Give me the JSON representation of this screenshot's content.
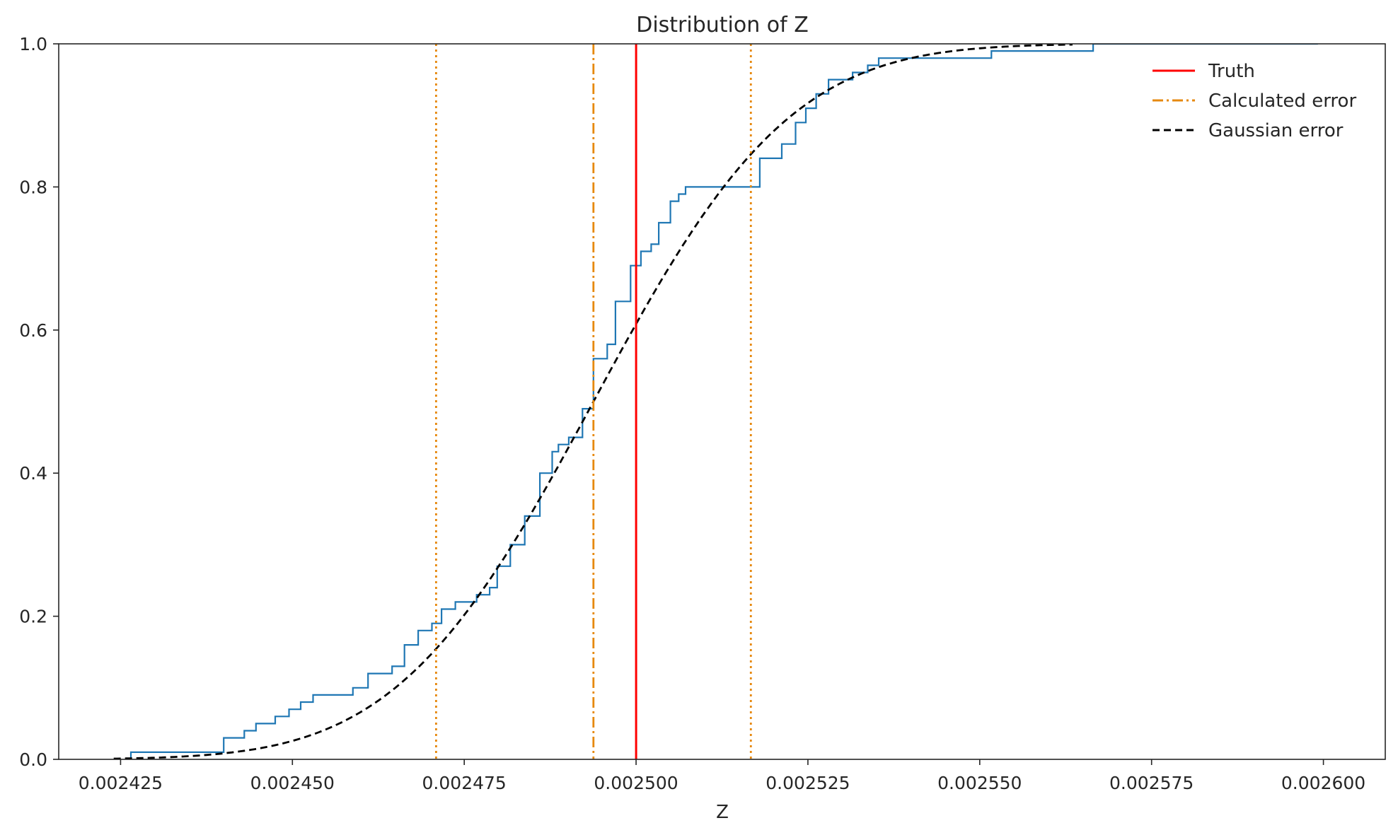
{
  "chart_data": {
    "type": "line",
    "title": "Distribution of Z",
    "xlabel": "Z",
    "ylabel": "",
    "xlim": [
      0.002416,
      0.002609
    ],
    "ylim": [
      0.0,
      1.0
    ],
    "xticks": [
      0.002425,
      0.00245,
      0.002475,
      0.0025,
      0.002525,
      0.00255,
      0.002575,
      0.0026
    ],
    "xtick_labels": [
      "0.002425",
      "0.002450",
      "0.002475",
      "0.002500",
      "0.002525",
      "0.002550",
      "0.002575",
      "0.002600"
    ],
    "yticks": [
      0.0,
      0.2,
      0.4,
      0.6,
      0.8,
      1.0
    ],
    "ytick_labels": [
      "0.0",
      "0.2",
      "0.4",
      "0.6",
      "0.8",
      "1.0"
    ],
    "grid": false,
    "legend_position": "top-right",
    "ecdf": {
      "color": "#1f77b4",
      "x": [
        0.0024265,
        0.00244,
        0.002443,
        0.0024447,
        0.0024475,
        0.0024495,
        0.0024512,
        0.002453,
        0.0024588,
        0.002461,
        0.0024645,
        0.0024663,
        0.0024683,
        0.0024703,
        0.0024717,
        0.0024737,
        0.0024768,
        0.0024787,
        0.0024798,
        0.0024817,
        0.0024838,
        0.002486,
        0.0024878,
        0.0024887,
        0.0024902,
        0.0024922,
        0.0024938,
        0.0024958,
        0.002497,
        0.0024992,
        0.0025007,
        0.0025022,
        0.0025033,
        0.002505,
        0.0025062,
        0.0025072,
        0.002518,
        0.0025212,
        0.0025232,
        0.0025247,
        0.0025262,
        0.002528,
        0.0025315,
        0.0025337,
        0.0025353,
        0.0025517,
        0.0025665,
        0.0025992
      ],
      "y": [
        0.01,
        0.03,
        0.04,
        0.05,
        0.06,
        0.07,
        0.08,
        0.09,
        0.1,
        0.12,
        0.13,
        0.16,
        0.18,
        0.19,
        0.21,
        0.22,
        0.23,
        0.24,
        0.27,
        0.3,
        0.34,
        0.4,
        0.43,
        0.44,
        0.45,
        0.49,
        0.56,
        0.58,
        0.64,
        0.69,
        0.71,
        0.72,
        0.75,
        0.78,
        0.79,
        0.8,
        0.84,
        0.86,
        0.89,
        0.91,
        0.93,
        0.95,
        0.96,
        0.97,
        0.98,
        0.99,
        1.0,
        1.0
      ]
    },
    "gaussian": {
      "mean": 0.0024938,
      "sd": 2.25e-05,
      "x_range": [
        0.002424,
        0.0025635
      ]
    },
    "vlines": [
      {
        "name": "Truth",
        "x": 0.0025,
        "color": "#ff0000",
        "style": "solid"
      },
      {
        "name": "Calculated error",
        "x": 0.0024938,
        "color": "#e6890f",
        "style": "dashdot"
      },
      {
        "name": "lower",
        "x": 0.0024709,
        "color": "#e6890f",
        "style": "dotted"
      },
      {
        "name": "upper",
        "x": 0.0025167,
        "color": "#e6890f",
        "style": "dotted"
      }
    ],
    "legend": [
      {
        "label": "Truth",
        "color": "#ff0000",
        "style": "solid"
      },
      {
        "label": "Calculated error",
        "color": "#e6890f",
        "style": "dashdot"
      },
      {
        "label": "Gaussian error",
        "color": "#000000",
        "style": "dashed"
      }
    ]
  }
}
